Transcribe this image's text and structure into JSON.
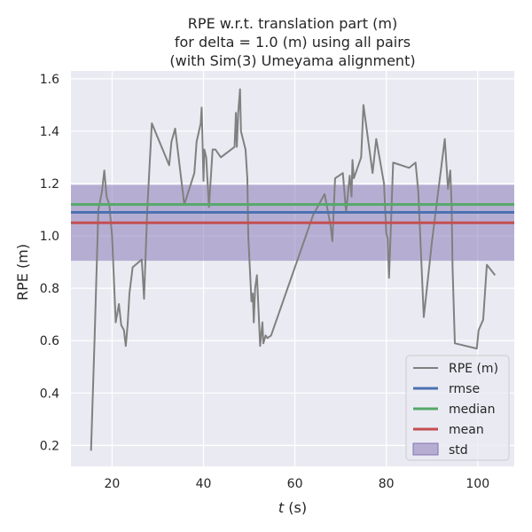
{
  "chart_data": {
    "type": "line",
    "title_lines": [
      "RPE w.r.t. translation part (m)",
      "for delta = 1.0 (m) using all pairs",
      "(with Sim(3) Umeyama alignment)"
    ],
    "xlabel_italic": "t",
    "xlabel_unit": " (s)",
    "ylabel": "RPE (m)",
    "xlim": [
      11.0,
      108.0
    ],
    "ylim": [
      0.12,
      1.63
    ],
    "xticks": [
      20,
      40,
      60,
      80,
      100
    ],
    "xtick_labels": [
      "20",
      "40",
      "60",
      "80",
      "100"
    ],
    "yticks": [
      0.2,
      0.4,
      0.6,
      0.8,
      1.0,
      1.2,
      1.4,
      1.6
    ],
    "ytick_labels": [
      "0.2",
      "0.4",
      "0.6",
      "0.8",
      "1.0",
      "1.2",
      "1.4",
      "1.6"
    ],
    "grid": true,
    "legend_position": "lower-right",
    "legend": [
      "RPE (m)",
      "rmse",
      "median",
      "mean",
      "std"
    ],
    "series": [
      {
        "name": "RPE (m)",
        "color": "#808080",
        "points": [
          [
            15.4,
            0.18
          ],
          [
            16.2,
            0.62
          ],
          [
            17.0,
            1.1
          ],
          [
            17.8,
            1.17
          ],
          [
            18.3,
            1.25
          ],
          [
            18.8,
            1.15
          ],
          [
            19.4,
            1.12
          ],
          [
            20.0,
            1.0
          ],
          [
            20.8,
            0.67
          ],
          [
            21.5,
            0.74
          ],
          [
            22.0,
            0.66
          ],
          [
            22.6,
            0.64
          ],
          [
            23.0,
            0.58
          ],
          [
            23.4,
            0.66
          ],
          [
            23.8,
            0.78
          ],
          [
            24.5,
            0.88
          ],
          [
            26.5,
            0.91
          ],
          [
            27.0,
            0.76
          ],
          [
            27.7,
            1.1
          ],
          [
            28.7,
            1.43
          ],
          [
            32.5,
            1.27
          ],
          [
            33.0,
            1.36
          ],
          [
            33.8,
            1.41
          ],
          [
            35.8,
            1.12
          ],
          [
            38.0,
            1.24
          ],
          [
            38.5,
            1.36
          ],
          [
            39.4,
            1.43
          ],
          [
            39.6,
            1.49
          ],
          [
            39.8,
            1.36
          ],
          [
            40.0,
            1.21
          ],
          [
            40.2,
            1.33
          ],
          [
            40.6,
            1.3
          ],
          [
            41.2,
            1.11
          ],
          [
            42.0,
            1.33
          ],
          [
            42.6,
            1.33
          ],
          [
            43.8,
            1.3
          ],
          [
            46.8,
            1.34
          ],
          [
            47.1,
            1.47
          ],
          [
            47.3,
            1.34
          ],
          [
            47.6,
            1.47
          ],
          [
            48.0,
            1.56
          ],
          [
            48.2,
            1.4
          ],
          [
            49.2,
            1.33
          ],
          [
            49.6,
            1.22
          ],
          [
            49.8,
            1.0
          ],
          [
            50.5,
            0.75
          ],
          [
            50.8,
            0.78
          ],
          [
            51.0,
            0.67
          ],
          [
            51.3,
            0.8
          ],
          [
            51.7,
            0.85
          ],
          [
            52.4,
            0.58
          ],
          [
            52.9,
            0.67
          ],
          [
            53.1,
            0.59
          ],
          [
            53.6,
            0.62
          ],
          [
            54.0,
            0.61
          ],
          [
            54.8,
            0.62
          ],
          [
            64.0,
            1.08
          ],
          [
            66.5,
            1.16
          ],
          [
            67.8,
            1.04
          ],
          [
            68.2,
            0.98
          ],
          [
            68.8,
            1.22
          ],
          [
            70.5,
            1.24
          ],
          [
            71.2,
            1.09
          ],
          [
            72.0,
            1.23
          ],
          [
            72.4,
            1.15
          ],
          [
            72.6,
            1.29
          ],
          [
            72.9,
            1.22
          ],
          [
            74.5,
            1.3
          ],
          [
            75.0,
            1.5
          ],
          [
            77.0,
            1.24
          ],
          [
            77.8,
            1.37
          ],
          [
            79.5,
            1.2
          ],
          [
            80.0,
            1.01
          ],
          [
            80.3,
            0.99
          ],
          [
            80.6,
            0.84
          ],
          [
            81.5,
            1.28
          ],
          [
            85.0,
            1.26
          ],
          [
            86.4,
            1.28
          ],
          [
            87.0,
            1.17
          ],
          [
            87.8,
            0.85
          ],
          [
            88.2,
            0.69
          ],
          [
            90.0,
            0.98
          ],
          [
            92.8,
            1.37
          ],
          [
            93.5,
            1.18
          ],
          [
            94.0,
            1.25
          ],
          [
            94.3,
            1.11
          ],
          [
            94.5,
            0.88
          ],
          [
            95.0,
            0.59
          ],
          [
            99.8,
            0.57
          ],
          [
            100.2,
            0.64
          ],
          [
            101.2,
            0.68
          ],
          [
            102.0,
            0.89
          ],
          [
            103.8,
            0.85
          ]
        ]
      }
    ],
    "stats": {
      "rmse": 1.09,
      "median": 1.12,
      "mean": 1.05,
      "std_band": [
        0.905,
        1.195
      ]
    },
    "colors": {
      "rpe": "#808080",
      "rmse": "#4c72b0",
      "median": "#55a868",
      "mean": "#c44e52",
      "std": "#8172b2",
      "plot_bg": "#eaeaf2",
      "grid": "#ffffff"
    }
  }
}
